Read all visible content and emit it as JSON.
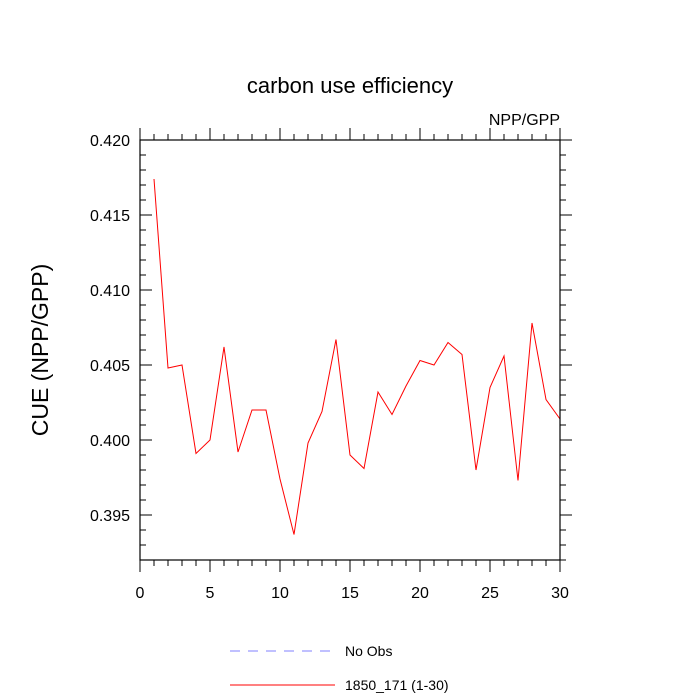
{
  "chart_data": {
    "type": "line",
    "title": "carbon use efficiency",
    "subtitle": "NPP/GPP",
    "xlabel": "",
    "ylabel": "CUE  (NPP/GPP)",
    "xlim": [
      0,
      30
    ],
    "ylim": [
      0.392,
      0.42
    ],
    "x_ticks": [
      0,
      5,
      10,
      15,
      20,
      25,
      30
    ],
    "x_tick_labels": [
      "0",
      "5",
      "10",
      "15",
      "20",
      "25",
      "30"
    ],
    "y_ticks": [
      0.395,
      0.4,
      0.405,
      0.41,
      0.415,
      0.42
    ],
    "y_tick_labels": [
      "0.395",
      "0.400",
      "0.405",
      "0.410",
      "0.415",
      "0.420"
    ],
    "grid": false,
    "legend_position": "bottom",
    "series": [
      {
        "name": "No Obs",
        "color": "#8080ff",
        "dash": "dashed",
        "x": [],
        "y": []
      },
      {
        "name": "1850_171 (1-30)",
        "color": "#ff0000",
        "dash": "solid",
        "x": [
          1,
          2,
          3,
          4,
          5,
          6,
          7,
          8,
          9,
          10,
          11,
          12,
          13,
          14,
          15,
          16,
          17,
          18,
          19,
          20,
          21,
          22,
          23,
          24,
          25,
          26,
          27,
          28,
          29,
          30
        ],
        "y": [
          0.4174,
          0.4048,
          0.405,
          0.3991,
          0.4,
          0.4062,
          0.3992,
          0.402,
          0.402,
          0.3974,
          0.3937,
          0.3998,
          0.4019,
          0.4067,
          0.399,
          0.3981,
          0.4032,
          0.4017,
          0.4036,
          0.4053,
          0.405,
          0.4065,
          0.4057,
          0.398,
          0.4035,
          0.4056,
          0.3973,
          0.4078,
          0.4027,
          0.4014
        ]
      }
    ]
  }
}
